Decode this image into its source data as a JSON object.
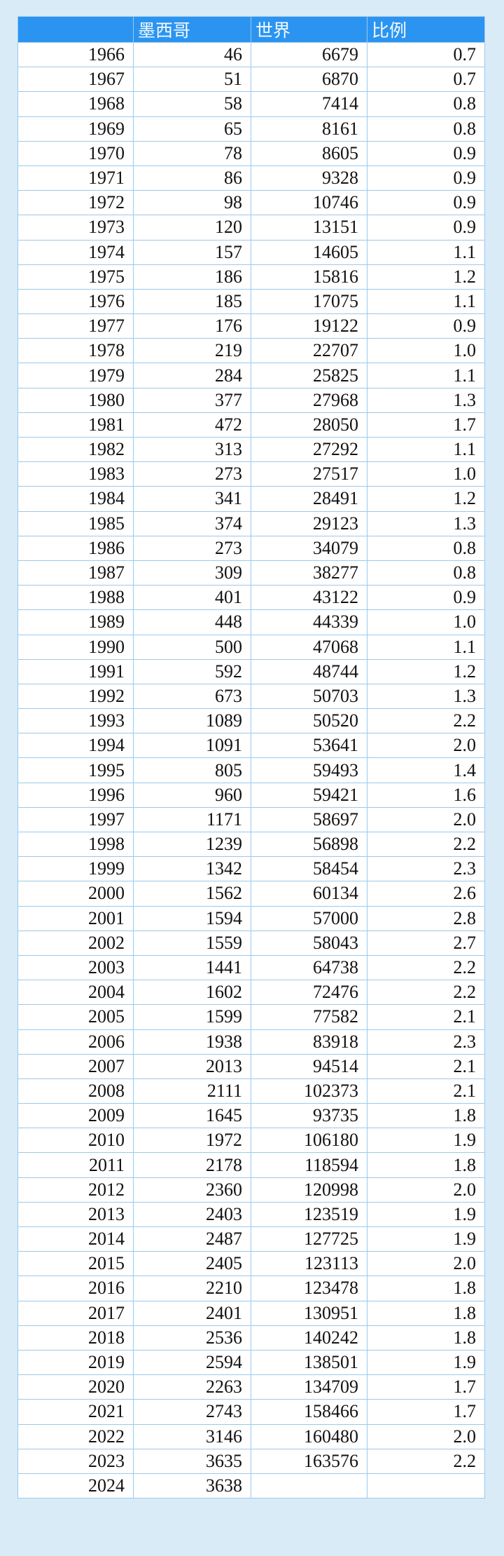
{
  "table": {
    "header": [
      "墨西哥",
      "世界",
      "比例"
    ],
    "rows": [
      [
        "1966",
        "46",
        "6679",
        "0.7"
      ],
      [
        "1967",
        "51",
        "6870",
        "0.7"
      ],
      [
        "1968",
        "58",
        "7414",
        "0.8"
      ],
      [
        "1969",
        "65",
        "8161",
        "0.8"
      ],
      [
        "1970",
        "78",
        "8605",
        "0.9"
      ],
      [
        "1971",
        "86",
        "9328",
        "0.9"
      ],
      [
        "1972",
        "98",
        "10746",
        "0.9"
      ],
      [
        "1973",
        "120",
        "13151",
        "0.9"
      ],
      [
        "1974",
        "157",
        "14605",
        "1.1"
      ],
      [
        "1975",
        "186",
        "15816",
        "1.2"
      ],
      [
        "1976",
        "185",
        "17075",
        "1.1"
      ],
      [
        "1977",
        "176",
        "19122",
        "0.9"
      ],
      [
        "1978",
        "219",
        "22707",
        "1.0"
      ],
      [
        "1979",
        "284",
        "25825",
        "1.1"
      ],
      [
        "1980",
        "377",
        "27968",
        "1.3"
      ],
      [
        "1981",
        "472",
        "28050",
        "1.7"
      ],
      [
        "1982",
        "313",
        "27292",
        "1.1"
      ],
      [
        "1983",
        "273",
        "27517",
        "1.0"
      ],
      [
        "1984",
        "341",
        "28491",
        "1.2"
      ],
      [
        "1985",
        "374",
        "29123",
        "1.3"
      ],
      [
        "1986",
        "273",
        "34079",
        "0.8"
      ],
      [
        "1987",
        "309",
        "38277",
        "0.8"
      ],
      [
        "1988",
        "401",
        "43122",
        "0.9"
      ],
      [
        "1989",
        "448",
        "44339",
        "1.0"
      ],
      [
        "1990",
        "500",
        "47068",
        "1.1"
      ],
      [
        "1991",
        "592",
        "48744",
        "1.2"
      ],
      [
        "1992",
        "673",
        "50703",
        "1.3"
      ],
      [
        "1993",
        "1089",
        "50520",
        "2.2"
      ],
      [
        "1994",
        "1091",
        "53641",
        "2.0"
      ],
      [
        "1995",
        "805",
        "59493",
        "1.4"
      ],
      [
        "1996",
        "960",
        "59421",
        "1.6"
      ],
      [
        "1997",
        "1171",
        "58697",
        "2.0"
      ],
      [
        "1998",
        "1239",
        "56898",
        "2.2"
      ],
      [
        "1999",
        "1342",
        "58454",
        "2.3"
      ],
      [
        "2000",
        "1562",
        "60134",
        "2.6"
      ],
      [
        "2001",
        "1594",
        "57000",
        "2.8"
      ],
      [
        "2002",
        "1559",
        "58043",
        "2.7"
      ],
      [
        "2003",
        "1441",
        "64738",
        "2.2"
      ],
      [
        "2004",
        "1602",
        "72476",
        "2.2"
      ],
      [
        "2005",
        "1599",
        "77582",
        "2.1"
      ],
      [
        "2006",
        "1938",
        "83918",
        "2.3"
      ],
      [
        "2007",
        "2013",
        "94514",
        "2.1"
      ],
      [
        "2008",
        "2111",
        "102373",
        "2.1"
      ],
      [
        "2009",
        "1645",
        "93735",
        "1.8"
      ],
      [
        "2010",
        "1972",
        "106180",
        "1.9"
      ],
      [
        "2011",
        "2178",
        "118594",
        "1.8"
      ],
      [
        "2012",
        "2360",
        "120998",
        "2.0"
      ],
      [
        "2013",
        "2403",
        "123519",
        "1.9"
      ],
      [
        "2014",
        "2487",
        "127725",
        "1.9"
      ],
      [
        "2015",
        "2405",
        "123113",
        "2.0"
      ],
      [
        "2016",
        "2210",
        "123478",
        "1.8"
      ],
      [
        "2017",
        "2401",
        "130951",
        "1.8"
      ],
      [
        "2018",
        "2536",
        "140242",
        "1.8"
      ],
      [
        "2019",
        "2594",
        "138501",
        "1.9"
      ],
      [
        "2020",
        "2263",
        "134709",
        "1.7"
      ],
      [
        "2021",
        "2743",
        "158466",
        "1.7"
      ],
      [
        "2022",
        "3146",
        "160480",
        "2.0"
      ],
      [
        "2023",
        "3635",
        "163576",
        "2.2"
      ],
      [
        "2024",
        "3638"
      ]
    ]
  }
}
